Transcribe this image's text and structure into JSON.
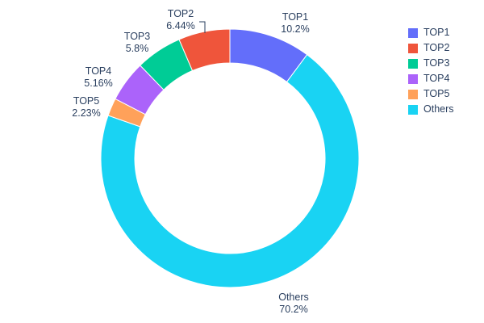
{
  "chart_data": {
    "type": "pie",
    "subtype": "donut",
    "hole": 0.74,
    "title": "",
    "legend_position": "right",
    "text_color": "#2a3f5f",
    "slices": [
      {
        "label": "TOP1",
        "value": 10.2,
        "pct_text": "10.2%",
        "color": "#636EFA"
      },
      {
        "label": "TOP2",
        "value": 6.44,
        "pct_text": "6.44%",
        "color": "#EF553B"
      },
      {
        "label": "TOP3",
        "value": 5.8,
        "pct_text": "5.8%",
        "color": "#00CC96"
      },
      {
        "label": "TOP4",
        "value": 5.16,
        "pct_text": "5.16%",
        "color": "#AB63FA"
      },
      {
        "label": "TOP5",
        "value": 2.23,
        "pct_text": "2.23%",
        "color": "#FFA15A"
      },
      {
        "label": "Others",
        "value": 70.2,
        "pct_text": "70.2%",
        "color": "#19D3F3"
      }
    ]
  }
}
